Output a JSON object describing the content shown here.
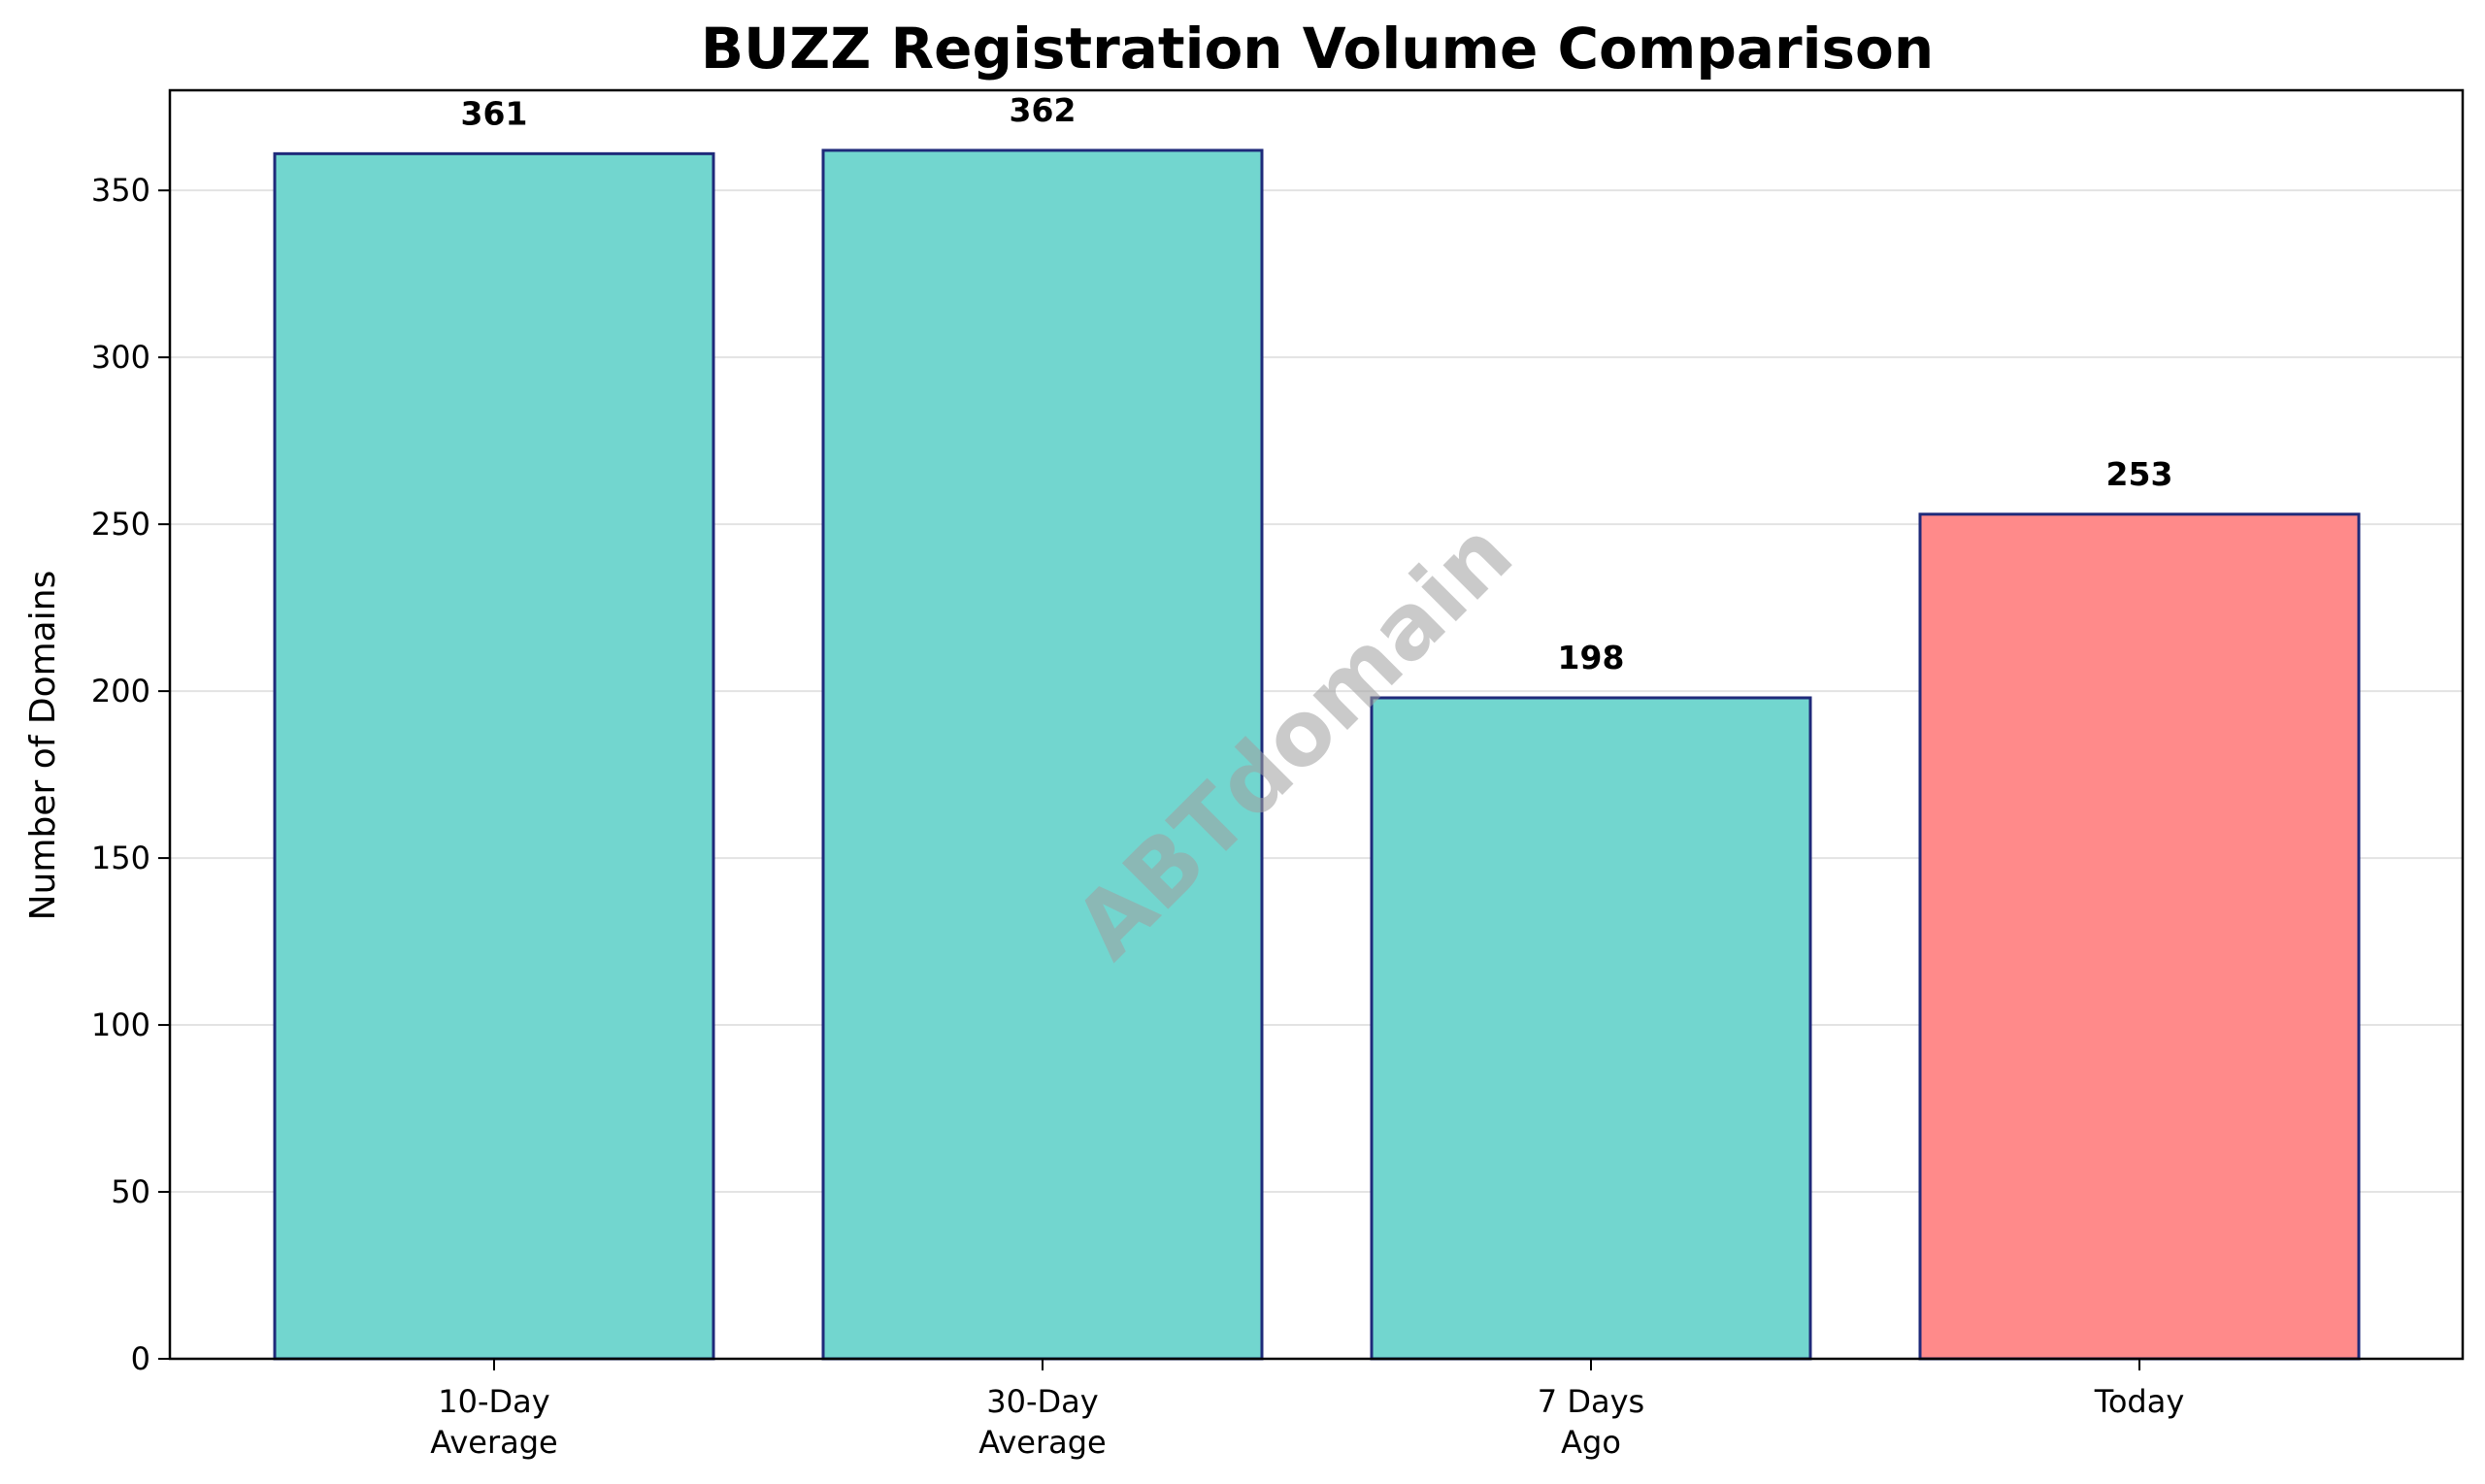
{
  "chart_data": {
    "type": "bar",
    "title": "BUZZ Registration Volume Comparison",
    "xlabel": "",
    "ylabel": "Number of Domains",
    "categories": [
      [
        "10-Day",
        "Average"
      ],
      [
        "30-Day",
        "Average"
      ],
      [
        "7 Days",
        "Ago"
      ],
      [
        "Today"
      ]
    ],
    "values": [
      361,
      362,
      198,
      253
    ],
    "value_labels": [
      "361",
      "362",
      "198",
      "253"
    ],
    "bar_colors": [
      "#72d6cf",
      "#72d6cf",
      "#72d6cf",
      "#ff8a8a"
    ],
    "bar_edge_color": "#1f2a7a",
    "ylim": [
      0,
      380
    ],
    "yticks": [
      0,
      50,
      100,
      150,
      200,
      250,
      300,
      350
    ],
    "grid": "y",
    "watermark": "ABTdomain"
  }
}
